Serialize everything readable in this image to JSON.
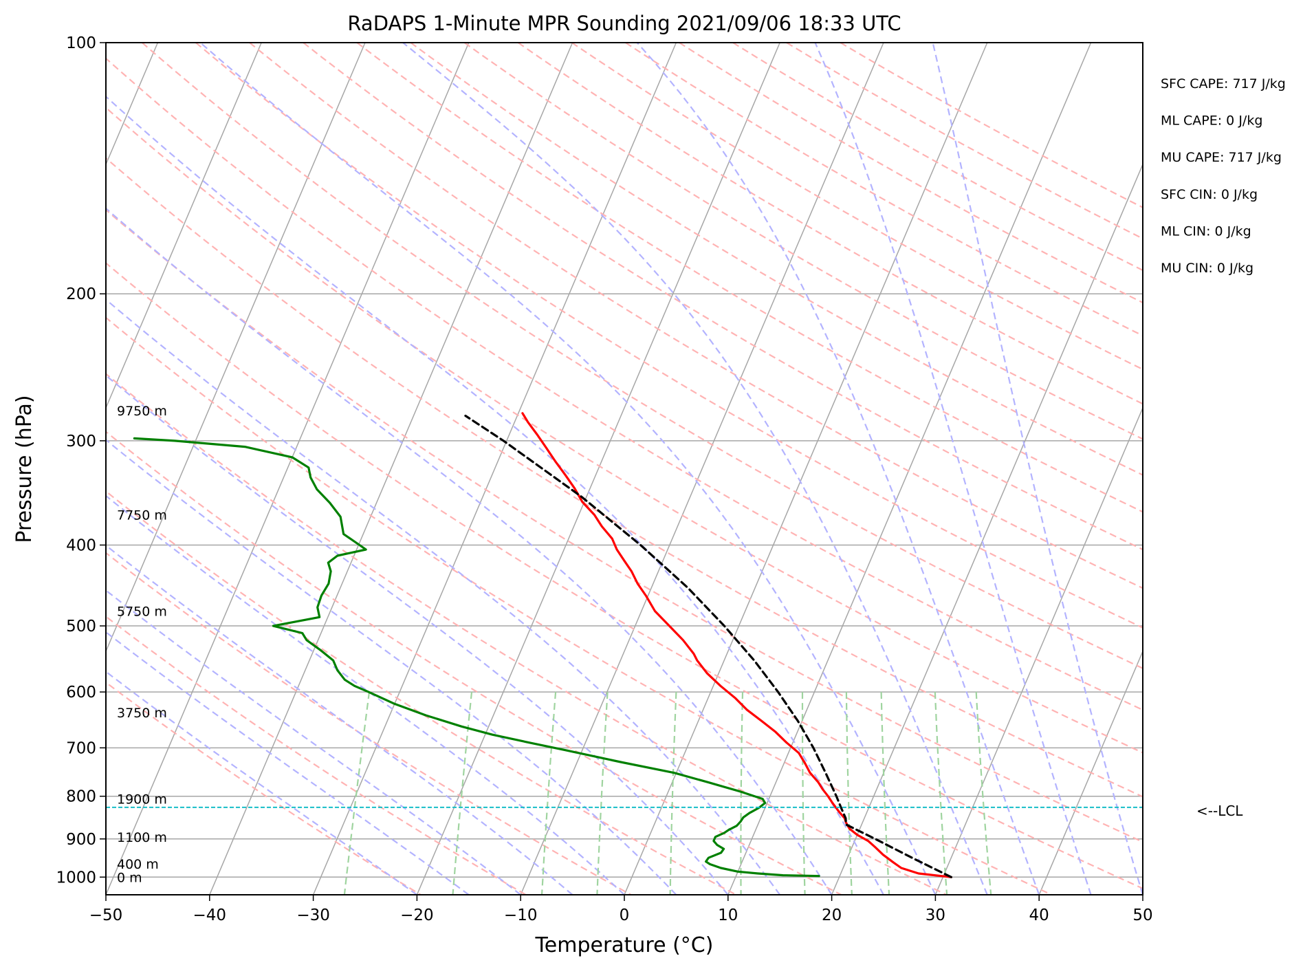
{
  "chart_data": {
    "type": "line",
    "title": "RaDAPS 1-Minute MPR Sounding 2021/09/06 18:33 UTC",
    "xlabel": "Temperature (°C)",
    "ylabel": "Pressure (hPa)",
    "xlim": [
      -50,
      50
    ],
    "ylim": [
      1050,
      100
    ],
    "y_scale": "log",
    "skew": "skew-T log-p",
    "x_ticks": [
      "−50",
      "−40",
      "−30",
      "−20",
      "−10",
      "0",
      "10",
      "20",
      "30",
      "40",
      "50"
    ],
    "y_ticks": [
      "100",
      "200",
      "300",
      "400",
      "500",
      "600",
      "700",
      "800",
      "900",
      "1000"
    ],
    "grid": true,
    "series": [
      {
        "name": "temperature",
        "color": "#ff0000",
        "points": [
          [
            1000,
            30.8
          ],
          [
            990,
            27.5
          ],
          [
            975,
            25.6
          ],
          [
            960,
            24.6
          ],
          [
            940,
            23.3
          ],
          [
            920,
            22.2
          ],
          [
            905,
            21.3
          ],
          [
            890,
            20.0
          ],
          [
            875,
            19.0
          ],
          [
            860,
            18.4
          ],
          [
            850,
            18.1
          ],
          [
            835,
            17.3
          ],
          [
            815,
            16.3
          ],
          [
            800,
            15.6
          ],
          [
            785,
            14.8
          ],
          [
            770,
            14.1
          ],
          [
            750,
            12.9
          ],
          [
            730,
            12.0
          ],
          [
            710,
            11.0
          ],
          [
            690,
            9.4
          ],
          [
            670,
            7.9
          ],
          [
            650,
            6.1
          ],
          [
            630,
            4.2
          ],
          [
            610,
            2.6
          ],
          [
            590,
            0.7
          ],
          [
            570,
            -1.1
          ],
          [
            550,
            -2.6
          ],
          [
            540,
            -3.2
          ],
          [
            520,
            -4.8
          ],
          [
            500,
            -6.7
          ],
          [
            480,
            -8.7
          ],
          [
            460,
            -10.2
          ],
          [
            445,
            -11.5
          ],
          [
            430,
            -12.6
          ],
          [
            418,
            -13.7
          ],
          [
            405,
            -14.9
          ],
          [
            393,
            -15.8
          ],
          [
            380,
            -17.3
          ],
          [
            368,
            -18.5
          ],
          [
            355,
            -20.2
          ],
          [
            342,
            -21.5
          ],
          [
            330,
            -22.9
          ],
          [
            318,
            -24.4
          ],
          [
            305,
            -26.0
          ],
          [
            295,
            -27.3
          ],
          [
            285,
            -28.7
          ],
          [
            278,
            -29.6
          ]
        ]
      },
      {
        "name": "dewpoint",
        "color": "#008000",
        "points": [
          [
            997,
            18.0
          ],
          [
            995,
            14.5
          ],
          [
            990,
            12.0
          ],
          [
            985,
            10.0
          ],
          [
            975,
            8.2
          ],
          [
            965,
            7.0
          ],
          [
            958,
            6.5
          ],
          [
            948,
            6.6
          ],
          [
            935,
            7.6
          ],
          [
            925,
            7.7
          ],
          [
            915,
            6.9
          ],
          [
            905,
            6.4
          ],
          [
            895,
            6.4
          ],
          [
            885,
            7.1
          ],
          [
            878,
            7.4
          ],
          [
            868,
            8.0
          ],
          [
            858,
            8.2
          ],
          [
            848,
            8.3
          ],
          [
            838,
            8.7
          ],
          [
            826,
            9.4
          ],
          [
            815,
            9.8
          ],
          [
            806,
            9.4
          ],
          [
            790,
            7.0
          ],
          [
            770,
            3.5
          ],
          [
            750,
            -0.2
          ],
          [
            728,
            -5.8
          ],
          [
            705,
            -11.5
          ],
          [
            690,
            -15.4
          ],
          [
            675,
            -19.3
          ],
          [
            660,
            -22.6
          ],
          [
            640,
            -26.5
          ],
          [
            620,
            -30.0
          ],
          [
            600,
            -33.0
          ],
          [
            590,
            -34.6
          ],
          [
            580,
            -35.8
          ],
          [
            565,
            -36.9
          ],
          [
            550,
            -37.7
          ],
          [
            535,
            -39.3
          ],
          [
            520,
            -41.1
          ],
          [
            510,
            -41.8
          ],
          [
            500,
            -44.9
          ],
          [
            488,
            -40.8
          ],
          [
            475,
            -41.4
          ],
          [
            460,
            -41.5
          ],
          [
            445,
            -41.3
          ],
          [
            430,
            -41.6
          ],
          [
            420,
            -42.2
          ],
          [
            412,
            -41.6
          ],
          [
            405,
            -39.1
          ],
          [
            400,
            -39.9
          ],
          [
            388,
            -41.9
          ],
          [
            370,
            -42.9
          ],
          [
            356,
            -44.5
          ],
          [
            343,
            -46.3
          ],
          [
            332,
            -47.4
          ],
          [
            323,
            -48.0
          ],
          [
            314,
            -50.0
          ],
          [
            305,
            -55.0
          ],
          [
            300,
            -62.0
          ],
          [
            298,
            -66.0
          ]
        ]
      },
      {
        "name": "parcel",
        "color": "#000000",
        "points": [
          [
            1000,
            30.8
          ],
          [
            950,
            26.4
          ],
          [
            900,
            21.9
          ],
          [
            865,
            18.5
          ],
          [
            850,
            18.2
          ],
          [
            825,
            17.3
          ],
          [
            800,
            16.4
          ],
          [
            750,
            14.4
          ],
          [
            700,
            12.2
          ],
          [
            650,
            9.6
          ],
          [
            600,
            6.5
          ],
          [
            550,
            2.9
          ],
          [
            500,
            -1.4
          ],
          [
            450,
            -6.5
          ],
          [
            400,
            -12.8
          ],
          [
            350,
            -20.5
          ],
          [
            300,
            -30.3
          ],
          [
            280,
            -35.0
          ]
        ]
      }
    ],
    "lcl": {
      "pressure": 825,
      "label": "<--LCL"
    },
    "height_labels": [
      {
        "pressure": 1000,
        "label": "0 m"
      },
      {
        "pressure": 964,
        "label": "400 m"
      },
      {
        "pressure": 895,
        "label": "1100 m"
      },
      {
        "pressure": 806,
        "label": "1900 m"
      },
      {
        "pressure": 635,
        "label": "3750 m"
      },
      {
        "pressure": 480,
        "label": "5750 m"
      },
      {
        "pressure": 368,
        "label": "7750 m"
      },
      {
        "pressure": 276,
        "label": "9750 m"
      }
    ],
    "annotations": [
      "SFC CAPE: 717 J/kg",
      "ML CAPE: 0 J/kg",
      "MU CAPE: 717 J/kg",
      "SFC CIN: 0 J/kg",
      "ML CIN: 0 J/kg",
      "MU CIN: 0 J/kg"
    ],
    "background_lines": {
      "isotherms_color": "#a6a6a6",
      "dry_adiabats_color": "#ffb3b3",
      "moist_adiabats_color": "#b3b3ff",
      "mixing_ratio_color": "#9fd49f"
    }
  }
}
